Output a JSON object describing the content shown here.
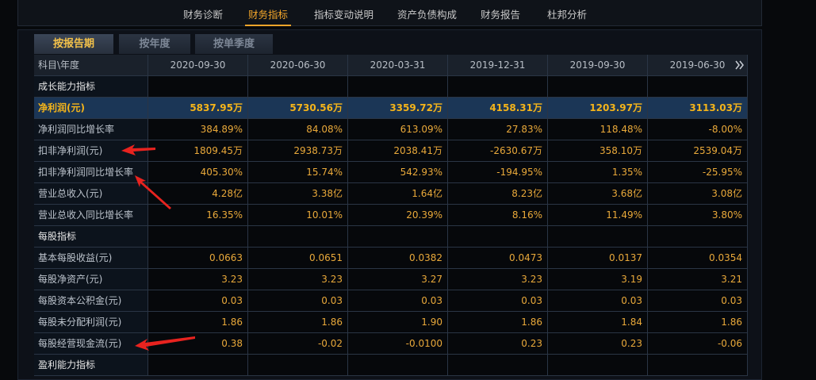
{
  "nav": {
    "items": [
      "财务诊断",
      "财务指标",
      "指标变动说明",
      "资产负债构成",
      "财务报告",
      "杜邦分析"
    ],
    "active": 1
  },
  "tabs": {
    "items": [
      "按报告期",
      "按年度",
      "按单季度"
    ],
    "active": 0
  },
  "table": {
    "header": [
      "科目\\年度",
      "2020-09-30",
      "2020-06-30",
      "2020-03-31",
      "2019-12-31",
      "2019-09-30",
      "2019-06-30"
    ],
    "rows": [
      {
        "label": "成长能力指标",
        "section": true
      },
      {
        "label": "净利润(元)",
        "highlight": true,
        "values": [
          "5837.95万",
          "5730.56万",
          "3359.72万",
          "4158.31万",
          "1203.97万",
          "3113.03万"
        ]
      },
      {
        "label": "净利润同比增长率",
        "values": [
          "384.89%",
          "84.08%",
          "613.09%",
          "27.83%",
          "118.48%",
          "-8.00%"
        ]
      },
      {
        "label": "扣非净利润(元)",
        "values": [
          "1809.45万",
          "2938.73万",
          "2038.41万",
          "-2630.67万",
          "358.10万",
          "2539.04万"
        ]
      },
      {
        "label": "扣非净利润同比增长率",
        "values": [
          "405.30%",
          "15.74%",
          "542.93%",
          "-194.95%",
          "1.35%",
          "-25.95%"
        ]
      },
      {
        "label": "营业总收入(元)",
        "values": [
          "4.28亿",
          "3.38亿",
          "1.64亿",
          "8.23亿",
          "3.68亿",
          "3.08亿"
        ]
      },
      {
        "label": "营业总收入同比增长率",
        "values": [
          "16.35%",
          "10.01%",
          "20.39%",
          "8.16%",
          "11.49%",
          "3.80%"
        ]
      },
      {
        "label": "每股指标",
        "section": true
      },
      {
        "label": "基本每股收益(元)",
        "values": [
          "0.0663",
          "0.0651",
          "0.0382",
          "0.0473",
          "0.0137",
          "0.0354"
        ]
      },
      {
        "label": "每股净资产(元)",
        "values": [
          "3.23",
          "3.23",
          "3.27",
          "3.23",
          "3.19",
          "3.21"
        ]
      },
      {
        "label": "每股资本公积金(元)",
        "values": [
          "0.03",
          "0.03",
          "0.03",
          "0.03",
          "0.03",
          "0.03"
        ]
      },
      {
        "label": "每股未分配利润(元)",
        "values": [
          "1.86",
          "1.86",
          "1.90",
          "1.86",
          "1.84",
          "1.86"
        ]
      },
      {
        "label": "每股经营现金流(元)",
        "values": [
          "0.38",
          "-0.02",
          "-0.0100",
          "0.23",
          "0.23",
          "-0.06"
        ]
      },
      {
        "label": "盈利能力指标",
        "section": true
      }
    ]
  }
}
